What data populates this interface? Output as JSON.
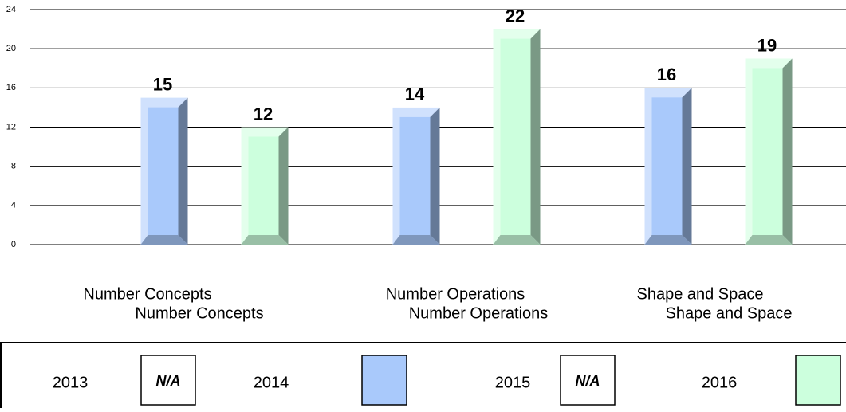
{
  "chart_data": {
    "type": "bar",
    "categories": [
      "Number Concepts",
      "Number Operations",
      "Shape and Space"
    ],
    "series": [
      {
        "name": "2013",
        "color": "#ffffff",
        "values": [
          null,
          null,
          null
        ],
        "legend_text": "N/A"
      },
      {
        "name": "2014",
        "color": "#a9c9fb",
        "values": [
          15,
          14,
          16
        ]
      },
      {
        "name": "2015",
        "color": "#ffffff",
        "values": [
          null,
          null,
          null
        ],
        "legend_text": "N/A"
      },
      {
        "name": "2016",
        "color": "#ccffdd",
        "values": [
          12,
          22,
          19
        ]
      }
    ],
    "ylim": [
      0,
      24
    ],
    "yticks": [
      0,
      4,
      8,
      12,
      16,
      20,
      24
    ],
    "grid": true
  }
}
